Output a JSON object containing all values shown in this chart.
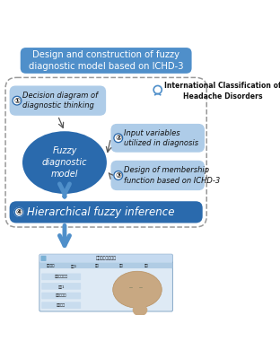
{
  "title": "Design and construction of fuzzy\ndiagnostic model based on ICHD-3",
  "title_bg": "#4f8fca",
  "title_color": "white",
  "box1_bg": "#aecce8",
  "box1_line1": "Decision diagram of",
  "box1_line2": "diagnostic thinking",
  "box2_bg": "#aecce8",
  "box2_text": "Input variables\nutilized in diagnosis",
  "box3_bg": "#aecce8",
  "box3_text": "Design of membership\nfunction based on ICHD-3",
  "box4_bg": "#2a6aad",
  "box4_color": "white",
  "box4_text": "Hierarchical fuzzy inference",
  "ellipse_bg": "#2a6aad",
  "ellipse_color": "white",
  "ellipse_text": "Fuzzy\ndiagnostic\nmodel",
  "ichd_text": "International Classification of\nHeadache Disorders",
  "dashed_border_color": "#999999",
  "arrow_color": "#4f8fca",
  "thin_arrow_color": "#555555",
  "num_circle_bg": "white",
  "num_circle_edge": "#2a6aad",
  "background": "white",
  "fig_w": 3.12,
  "fig_h": 4.0,
  "dpi": 100
}
